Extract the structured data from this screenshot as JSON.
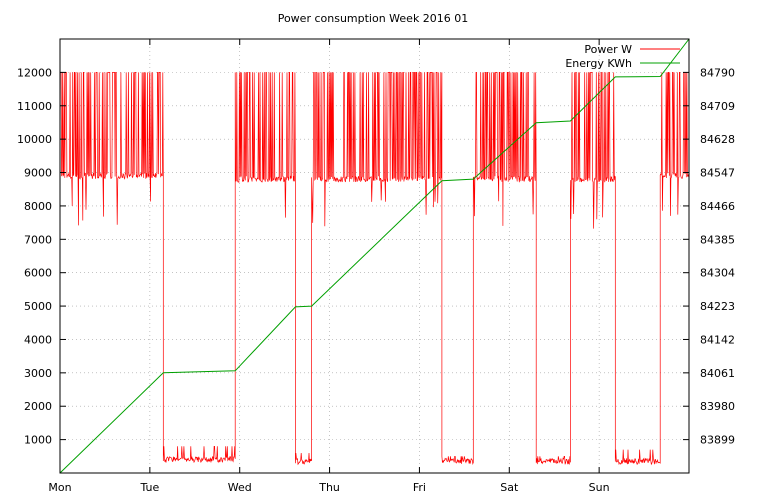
{
  "chart_data": {
    "type": "line",
    "title": "Power consumption Week 2016 01",
    "x_ticks": [
      "Mon",
      "Tue",
      "Wed",
      "Thu",
      "Fri",
      "Sat",
      "Sun"
    ],
    "y_ticks": [
      "1000",
      "2000",
      "3000",
      "4000",
      "5000",
      "6000",
      "7000",
      "8000",
      "9000",
      "10000",
      "11000",
      "12000"
    ],
    "y2_ticks": [
      "83899",
      "83980",
      "84061",
      "84142",
      "84223",
      "84304",
      "84385",
      "84466",
      "84547",
      "84628",
      "84709",
      "84790"
    ],
    "ylim": [
      0,
      13000
    ],
    "y2lim": [
      83818,
      84871
    ],
    "xlim": [
      0,
      7
    ],
    "grid": true,
    "legend": "top-right",
    "series": [
      {
        "name": "Power W",
        "axis": "left",
        "color": "#ff0000",
        "segments": [
          {
            "x": [
              0.0,
              1.15
            ],
            "base": 8900,
            "peak": 12000,
            "spiky": true
          },
          {
            "x": [
              1.15,
              1.95
            ],
            "base": 400,
            "peak": 800,
            "spiky": false
          },
          {
            "x": [
              1.95,
              2.62
            ],
            "base": 8800,
            "peak": 12000,
            "spiky": true
          },
          {
            "x": [
              2.62,
              2.8
            ],
            "base": 350,
            "peak": 600,
            "spiky": false
          },
          {
            "x": [
              2.8,
              4.25
            ],
            "base": 8800,
            "peak": 12000,
            "spiky": true
          },
          {
            "x": [
              4.25,
              4.6
            ],
            "base": 350,
            "peak": 500,
            "spiky": false
          },
          {
            "x": [
              4.6,
              5.3
            ],
            "base": 8800,
            "peak": 12000,
            "spiky": true
          },
          {
            "x": [
              5.3,
              5.68
            ],
            "base": 350,
            "peak": 500,
            "spiky": false
          },
          {
            "x": [
              5.68,
              6.18
            ],
            "base": 8800,
            "peak": 12000,
            "spiky": true
          },
          {
            "x": [
              6.18,
              6.68
            ],
            "base": 350,
            "peak": 700,
            "spiky": false
          },
          {
            "x": [
              6.68,
              7.0
            ],
            "base": 8900,
            "peak": 12000,
            "spiky": true
          }
        ]
      },
      {
        "name": "Energy KWh",
        "axis": "right",
        "color": "#00a000",
        "x": [
          0.0,
          1.15,
          1.95,
          2.62,
          2.8,
          4.25,
          4.6,
          5.3,
          5.68,
          6.18,
          6.68,
          7.0
        ],
        "y": [
          83818,
          84061,
          84066,
          84221,
          84223,
          84527,
          84531,
          84668,
          84672,
          84779,
          84780,
          84871
        ]
      }
    ]
  }
}
